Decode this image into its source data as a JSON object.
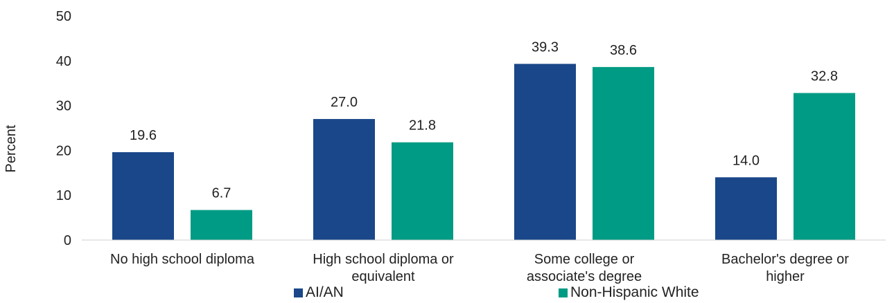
{
  "chart_data": {
    "type": "bar",
    "title": "",
    "xlabel": "",
    "ylabel": "Percent",
    "ylim": [
      0,
      50
    ],
    "yticks": [
      "0",
      "10",
      "20",
      "30",
      "40",
      "50"
    ],
    "categories": [
      [
        "No high school diploma"
      ],
      [
        "High school diploma or",
        "equivalent"
      ],
      [
        "Some college or",
        "associate's degree"
      ],
      [
        "Bachelor's degree or",
        "higher"
      ]
    ],
    "series": [
      {
        "name": "AI/AN",
        "color": "#1a4789",
        "values": [
          19.6,
          27.0,
          39.3,
          14.0
        ],
        "labels": [
          "19.6",
          "27.0",
          "39.3",
          "14.0"
        ]
      },
      {
        "name": "Non-Hispanic White",
        "color": "#009b84",
        "values": [
          6.7,
          21.8,
          38.6,
          32.8
        ],
        "labels": [
          "6.7",
          "21.8",
          "38.6",
          "32.8"
        ]
      }
    ],
    "grid": false,
    "legend": "bottom"
  }
}
